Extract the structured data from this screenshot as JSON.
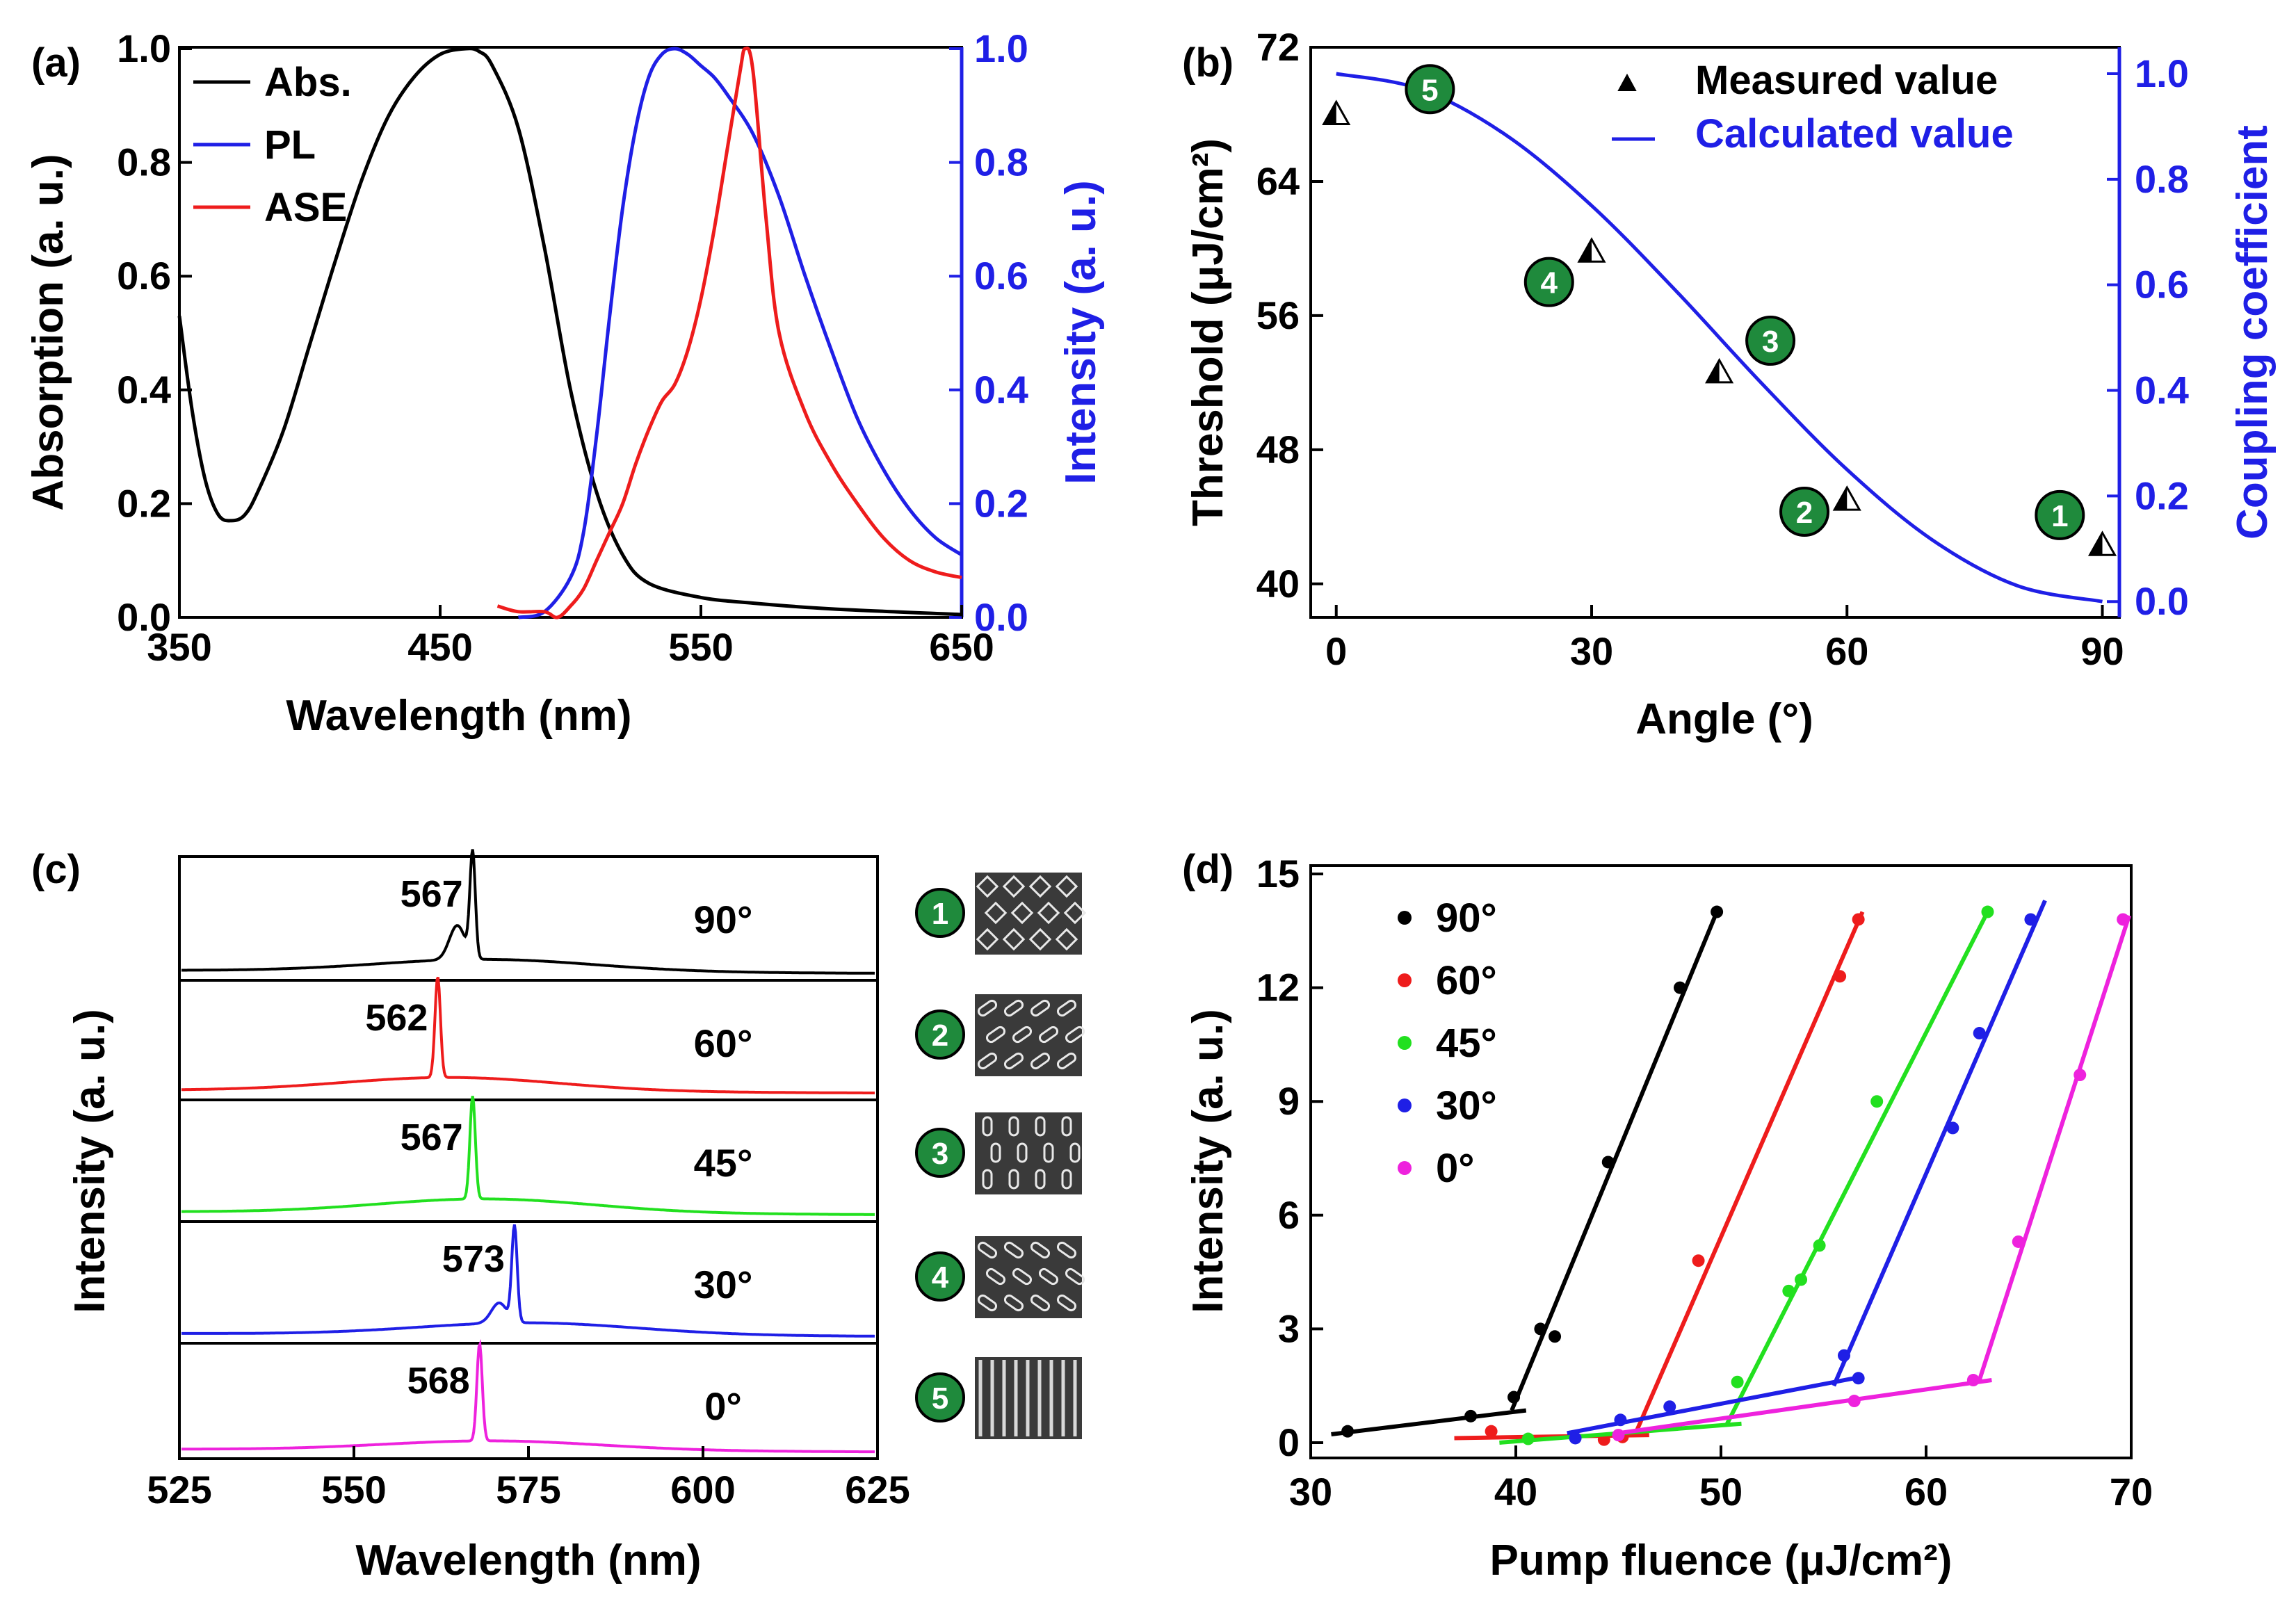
{
  "panels": {
    "a": {
      "label": "(a)",
      "xlabel": "Wavelength (nm)",
      "ylabel_left": "Absorption (a. u.)",
      "ylabel_right": "Intensity (a. u.)",
      "xticks": [
        "350",
        "450",
        "550",
        "650"
      ],
      "yticks_left": [
        "0.0",
        "0.2",
        "0.4",
        "0.6",
        "0.8",
        "1.0"
      ],
      "yticks_right": [
        "0.0",
        "0.2",
        "0.4",
        "0.6",
        "0.8",
        "1.0"
      ],
      "legend": [
        "Abs.",
        "PL",
        "ASE"
      ]
    },
    "b": {
      "label": "(b)",
      "xlabel": "Angle (°)",
      "ylabel_left": "Threshold (μJ/cm²)",
      "ylabel_right": "Coupling  coefficient",
      "xticks": [
        "0",
        "30",
        "60",
        "90"
      ],
      "yticks_left": [
        "40",
        "48",
        "56",
        "64",
        "72"
      ],
      "yticks_right": [
        "0.0",
        "0.2",
        "0.4",
        "0.6",
        "0.8",
        "1.0"
      ],
      "legend": [
        "Measured value",
        "Calculated value"
      ],
      "badges": [
        "1",
        "2",
        "3",
        "4",
        "5"
      ]
    },
    "c": {
      "label": "(c)",
      "xlabel": "Wavelength (nm)",
      "ylabel": "Intensity (a. u.)",
      "xticks": [
        "525",
        "550",
        "575",
        "600",
        "625"
      ],
      "rows": [
        {
          "angle": "90°",
          "peak": "567"
        },
        {
          "angle": "60°",
          "peak": "562"
        },
        {
          "angle": "45°",
          "peak": "567"
        },
        {
          "angle": "30°",
          "peak": "573"
        },
        {
          "angle": "0°",
          "peak": "568"
        }
      ],
      "badges": [
        "1",
        "2",
        "3",
        "4",
        "5"
      ]
    },
    "d": {
      "label": "(d)",
      "xlabel": "Pump fluence (μJ/cm²)",
      "ylabel": "Intensity (a. u.)",
      "xticks": [
        "30",
        "40",
        "50",
        "60",
        "70"
      ],
      "yticks": [
        "0",
        "3",
        "6",
        "9",
        "12",
        "15"
      ],
      "legend": [
        "90°",
        "60°",
        "45°",
        "30°",
        "0°"
      ]
    }
  },
  "colors": {
    "black": "#000000",
    "blue": "#1f1fe6",
    "red": "#ee1c1c",
    "green": "#22e01f",
    "magenta": "#ee22dd",
    "badge": "#1f8a3c"
  },
  "chart_data": [
    {
      "panel": "a",
      "type": "line",
      "xlim": [
        350,
        650
      ],
      "ylim_left": [
        0,
        1
      ],
      "ylim_right": [
        0,
        1
      ],
      "series": [
        {
          "name": "Abs.",
          "axis": "left",
          "color": "#000000",
          "x": [
            350,
            355,
            360,
            365,
            370,
            375,
            380,
            390,
            400,
            410,
            420,
            430,
            440,
            450,
            460,
            465,
            470,
            480,
            490,
            500,
            510,
            520,
            530,
            550,
            570,
            600,
            650
          ],
          "y": [
            0.53,
            0.36,
            0.24,
            0.18,
            0.17,
            0.18,
            0.22,
            0.33,
            0.48,
            0.63,
            0.77,
            0.88,
            0.95,
            0.99,
            1.0,
            0.995,
            0.97,
            0.86,
            0.65,
            0.4,
            0.22,
            0.11,
            0.06,
            0.035,
            0.025,
            0.015,
            0.005
          ]
        },
        {
          "name": "PL",
          "axis": "right",
          "color": "#1f1fe6",
          "x": [
            480,
            490,
            500,
            505,
            510,
            515,
            520,
            525,
            530,
            535,
            540,
            545,
            550,
            555,
            560,
            570,
            580,
            590,
            600,
            610,
            620,
            630,
            640,
            650
          ],
          "y": [
            0.0,
            0.01,
            0.07,
            0.15,
            0.32,
            0.53,
            0.72,
            0.86,
            0.95,
            0.99,
            1.0,
            0.99,
            0.97,
            0.95,
            0.92,
            0.85,
            0.74,
            0.6,
            0.47,
            0.35,
            0.26,
            0.19,
            0.14,
            0.11
          ]
        },
        {
          "name": "ASE",
          "axis": "right",
          "color": "#ee1c1c",
          "x": [
            472,
            480,
            490,
            495,
            500,
            505,
            510,
            515,
            520,
            525,
            530,
            535,
            540,
            545,
            550,
            555,
            560,
            565,
            567,
            570,
            575,
            580,
            590,
            600,
            610,
            620,
            630,
            640,
            650
          ],
          "y": [
            0.02,
            0.01,
            0.01,
            0.0,
            0.02,
            0.05,
            0.1,
            0.15,
            0.2,
            0.27,
            0.33,
            0.38,
            0.41,
            0.47,
            0.56,
            0.68,
            0.82,
            0.96,
            1.0,
            0.96,
            0.7,
            0.5,
            0.36,
            0.27,
            0.2,
            0.14,
            0.1,
            0.08,
            0.07
          ]
        }
      ]
    },
    {
      "panel": "b",
      "type": "scatter",
      "xlim": [
        -3,
        92
      ],
      "ylim_left": [
        38,
        72
      ],
      "ylim_right": [
        -0.03,
        1.05
      ],
      "series": [
        {
          "name": "Measured value",
          "axis": "left",
          "marker": "triangle",
          "color": "#000000",
          "x": [
            0,
            30,
            45,
            60,
            90
          ],
          "y": [
            68.0,
            59.8,
            52.6,
            45.0,
            42.3
          ]
        },
        {
          "name": "Calculated value",
          "axis": "right",
          "color": "#1f1fe6",
          "x": [
            0,
            10,
            20,
            30,
            40,
            50,
            60,
            70,
            80,
            90
          ],
          "y": [
            1.0,
            0.97,
            0.883,
            0.75,
            0.587,
            0.413,
            0.25,
            0.117,
            0.03,
            0.0
          ]
        }
      ],
      "badges": [
        {
          "label": "5",
          "x": 11,
          "y": 69.5
        },
        {
          "label": "4",
          "x": 25,
          "y": 58.0
        },
        {
          "label": "3",
          "x": 51,
          "y": 54.5
        },
        {
          "label": "2",
          "x": 55,
          "y": 44.3
        },
        {
          "label": "1",
          "x": 85,
          "y": 44.1
        }
      ]
    },
    {
      "panel": "c",
      "type": "line",
      "xlim": [
        525,
        625
      ],
      "rows": [
        {
          "angle": "90°",
          "peak_x": 567,
          "color": "#000000",
          "peak_h": 0.92,
          "base": 0.05,
          "hump": 0.12,
          "shoulder": 0.3
        },
        {
          "angle": "60°",
          "peak_x": 562,
          "color": "#ee1c1c",
          "peak_h": 0.92,
          "base": 0.05,
          "hump": 0.14,
          "shoulder": 0.0
        },
        {
          "angle": "45°",
          "peak_x": 567,
          "color": "#22e01f",
          "peak_h": 0.92,
          "base": 0.05,
          "hump": 0.14,
          "shoulder": 0.0
        },
        {
          "angle": "30°",
          "peak_x": 573,
          "color": "#1f1fe6",
          "peak_h": 0.85,
          "base": 0.05,
          "hump": 0.12,
          "shoulder": 0.18
        },
        {
          "angle": "0°",
          "peak_x": 568,
          "color": "#ee22dd",
          "peak_h": 0.92,
          "base": 0.05,
          "hump": 0.1,
          "shoulder": 0.0
        }
      ]
    },
    {
      "panel": "d",
      "type": "scatter",
      "xlim": [
        30,
        70
      ],
      "ylim": [
        -0.2,
        15
      ],
      "series": [
        {
          "name": "90°",
          "color": "#000000",
          "x": [
            31.8,
            37.8,
            39.9,
            41.2,
            41.9,
            44.5,
            48.0,
            49.8
          ],
          "y": [
            0.3,
            0.7,
            1.2,
            3.0,
            2.8,
            7.4,
            12.0,
            14.0
          ],
          "low_fit": [
            [
              31,
              0.22
            ],
            [
              40.5,
              0.85
            ]
          ],
          "high_fit": [
            [
              39.8,
              0.85
            ],
            [
              49.8,
              14.0
            ]
          ]
        },
        {
          "name": "60°",
          "color": "#ee1c1c",
          "x": [
            38.8,
            44.3,
            45.2,
            48.9,
            55.8,
            56.7
          ],
          "y": [
            0.3,
            0.08,
            0.15,
            4.8,
            12.3,
            13.8
          ],
          "low_fit": [
            [
              37,
              0.12
            ],
            [
              46.5,
              0.2
            ]
          ],
          "high_fit": [
            [
              45.8,
              0.2
            ],
            [
              56.9,
              14.0
            ]
          ]
        },
        {
          "name": "45°",
          "color": "#22e01f",
          "x": [
            40.6,
            50.8,
            53.3,
            53.9,
            54.8,
            57.6,
            63.0
          ],
          "y": [
            0.1,
            1.6,
            4.0,
            4.3,
            5.2,
            9.0,
            14.0
          ],
          "low_fit": [
            [
              39.2,
              0.0
            ],
            [
              51.0,
              0.5
            ]
          ],
          "high_fit": [
            [
              50.3,
              0.5
            ],
            [
              63.0,
              14.0
            ]
          ]
        },
        {
          "name": "30°",
          "color": "#1f1fe6",
          "x": [
            42.9,
            45.1,
            47.5,
            56.0,
            56.7,
            61.3,
            62.6,
            65.1
          ],
          "y": [
            0.12,
            0.6,
            0.95,
            2.3,
            1.7,
            8.3,
            10.8,
            13.8
          ],
          "low_fit": [
            [
              42.5,
              0.25
            ],
            [
              56.5,
              1.7
            ]
          ],
          "high_fit": [
            [
              55.5,
              1.5
            ],
            [
              65.8,
              14.3
            ]
          ]
        },
        {
          "name": "0°",
          "color": "#ee22dd",
          "x": [
            45.0,
            56.5,
            62.3,
            64.5,
            67.5,
            69.6
          ],
          "y": [
            0.2,
            1.1,
            1.65,
            5.3,
            9.7,
            13.8
          ],
          "low_fit": [
            [
              45,
              0.25
            ],
            [
              63.2,
              1.65
            ]
          ],
          "high_fit": [
            [
              62.6,
              1.65
            ],
            [
              69.9,
              13.9
            ]
          ]
        }
      ]
    }
  ]
}
